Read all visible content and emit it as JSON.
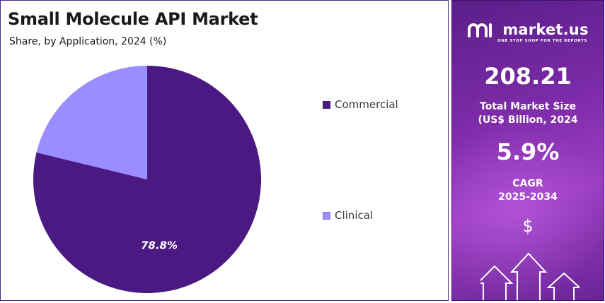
{
  "chart": {
    "title": "Small Molecule API Market",
    "subtitle": "Share, by Application, 2024 (%)"
  },
  "chart_data": {
    "type": "pie",
    "title": "Small Molecule API Market",
    "subtitle": "Share, by Application, 2024 (%)",
    "categories": [
      "Commercial",
      "Clinical"
    ],
    "values": [
      78.8,
      21.2
    ],
    "colors": [
      "#4a1a82",
      "#9b8cff"
    ],
    "data_labels": [
      "78.8%",
      ""
    ],
    "legend": "right"
  },
  "legend": {
    "items": [
      {
        "label": "Commercial",
        "color": "#4a1a82"
      },
      {
        "label": "Clinical",
        "color": "#9b8cff"
      }
    ]
  },
  "sidebar": {
    "brand": "market.us",
    "tagline": "ONE STOP SHOP FOR THE REPORTS",
    "market_size_value": "208.21",
    "market_size_label_line1": "Total Market Size",
    "market_size_label_line2": "(US$ Billion, 2024",
    "cagr_value": "5.9%",
    "cagr_label_line1": "CAGR",
    "cagr_label_line2": "2025-2034",
    "dollar_symbol": "$",
    "accent": "#7a2aa6"
  }
}
